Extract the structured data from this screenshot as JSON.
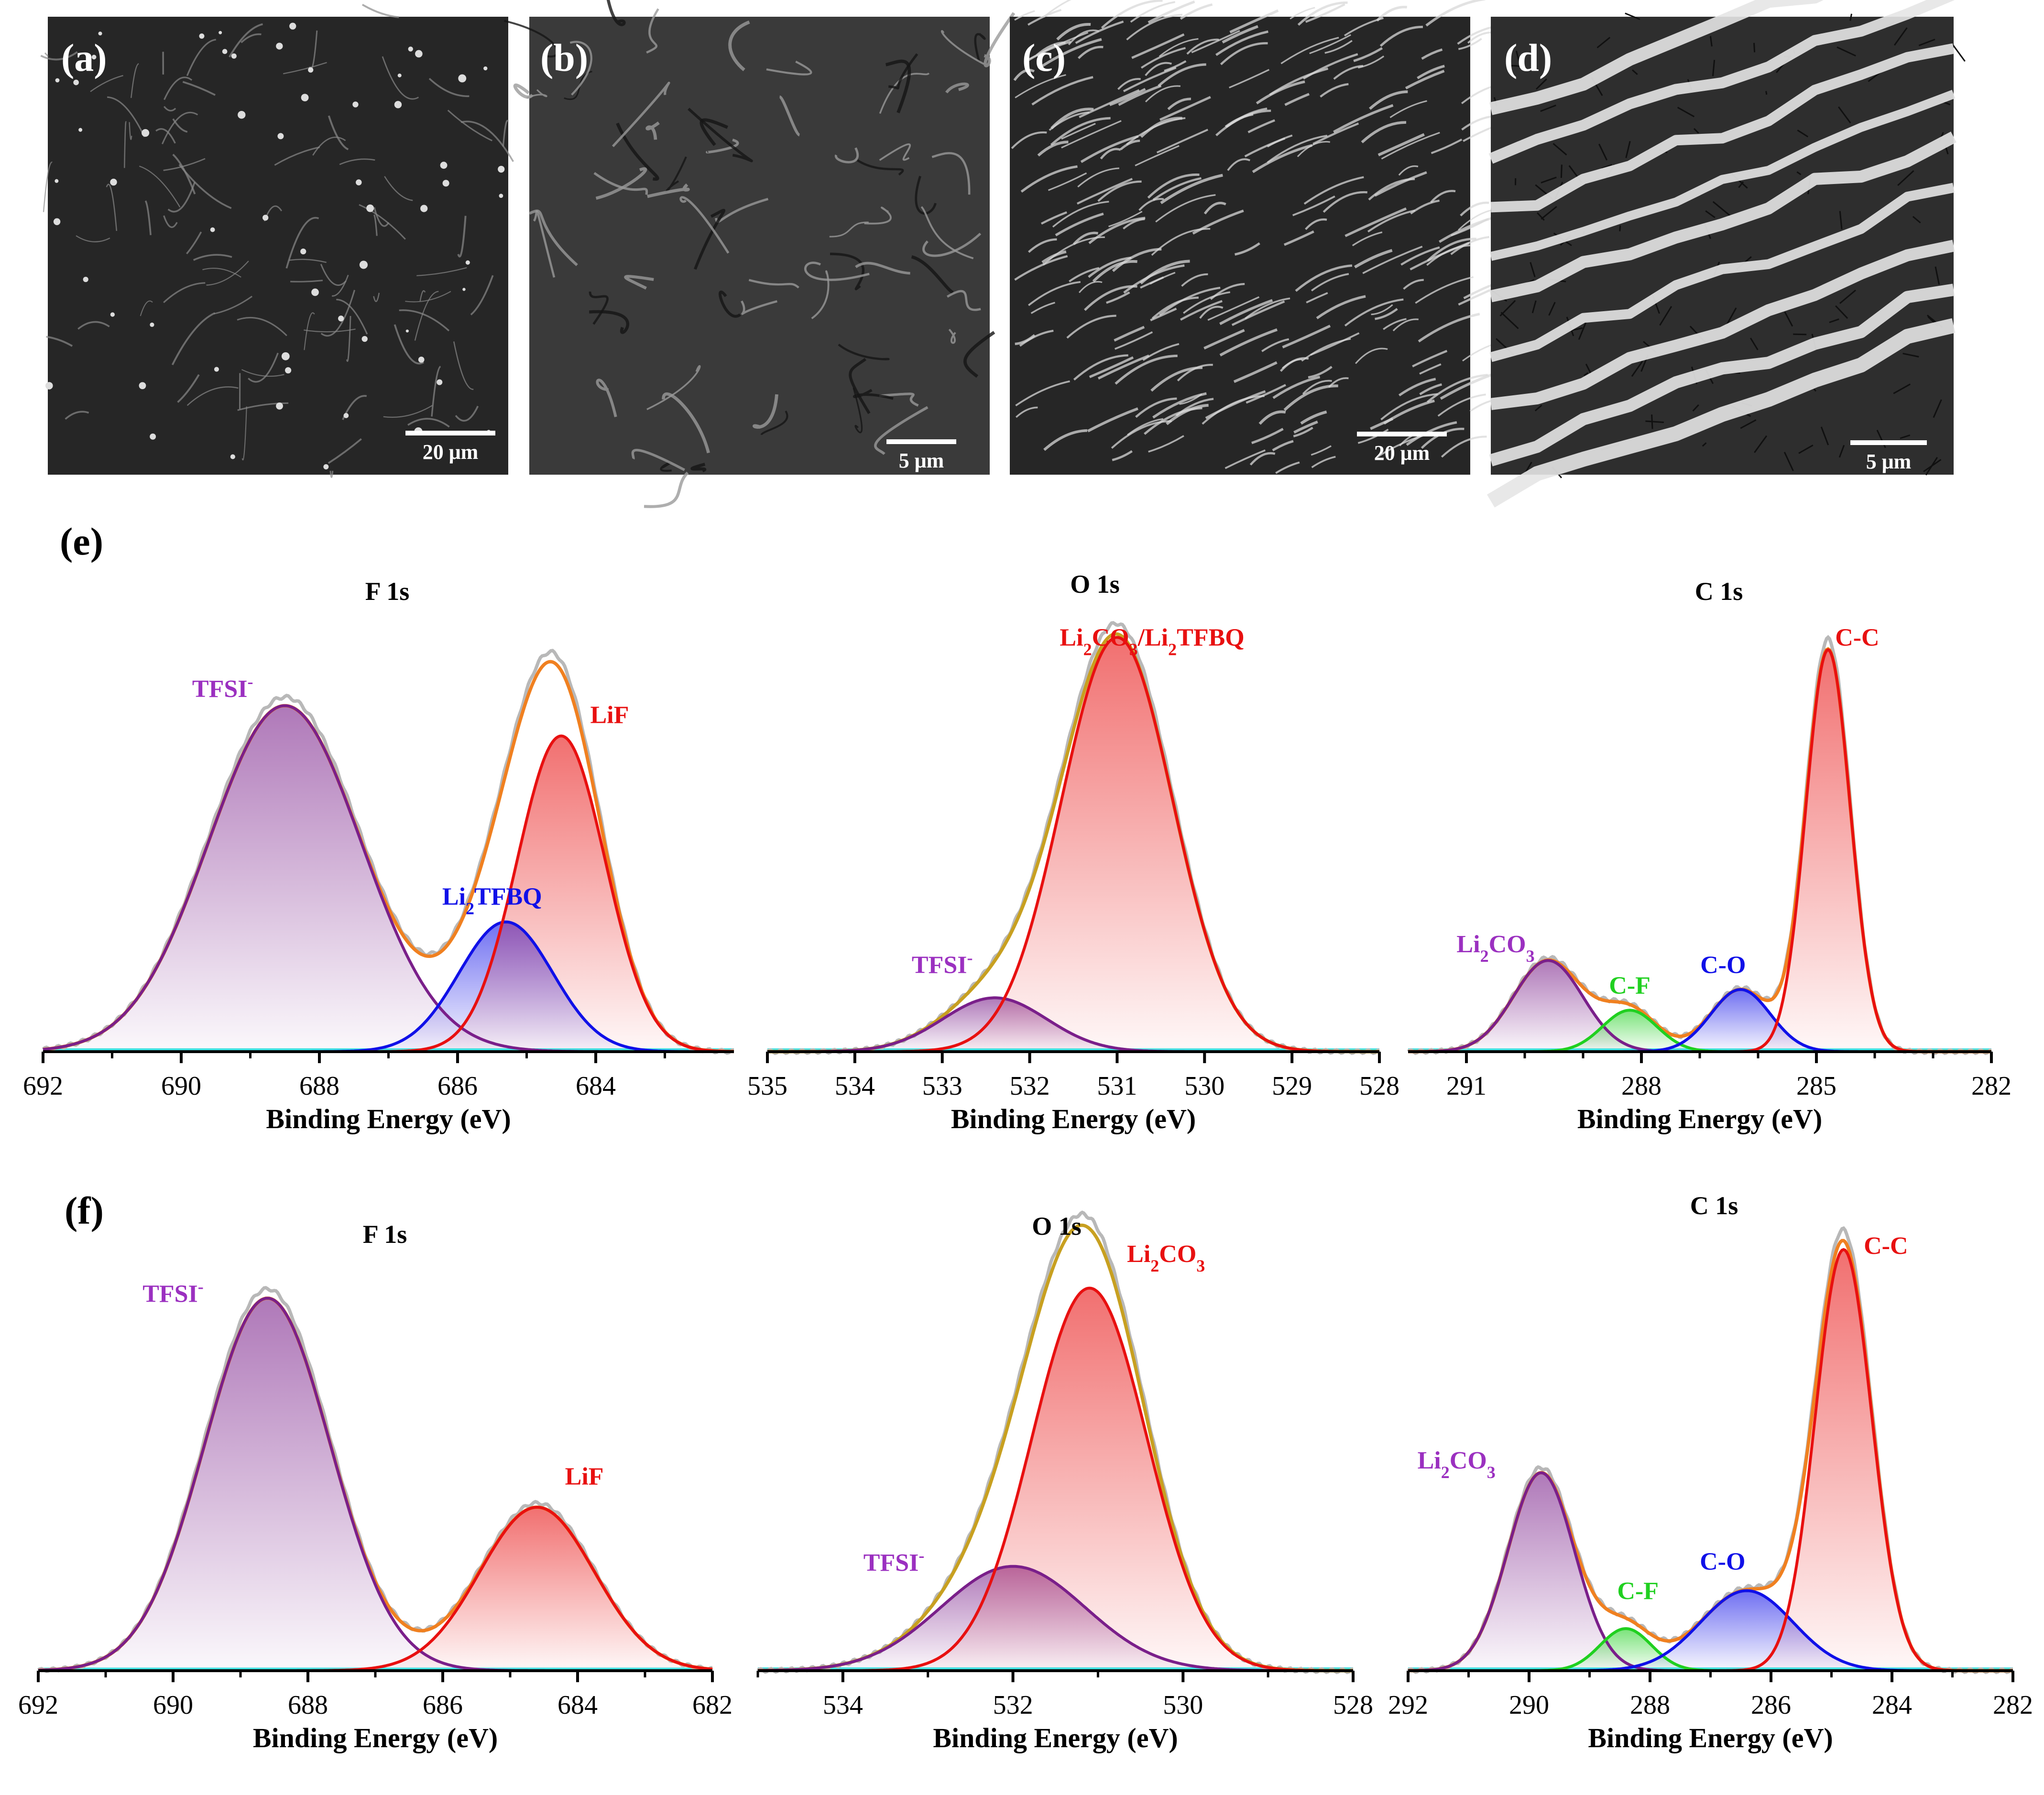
{
  "sem_panels": [
    {
      "letter": "(a)",
      "scale_bar": "20 μm",
      "texture": "fine cracks with bright particles"
    },
    {
      "letter": "(b)",
      "scale_bar": "5 μm",
      "texture": "smooth surface with folds"
    },
    {
      "letter": "(c)",
      "scale_bar": "20 μm",
      "texture": "dense fibrous ridges"
    },
    {
      "letter": "(d)",
      "scale_bar": "5 μm",
      "texture": "coarse bright ridges"
    }
  ],
  "row_labels": {
    "e": "(e)",
    "f": "(f)"
  },
  "colors": {
    "raw": "#b8b8b8",
    "envelope": "#f08020",
    "envelope_o": "#c8a020",
    "purple": "#7a1f8a",
    "purple_label": "#9b30c0",
    "blue": "#1010e8",
    "red": "#e81010",
    "green": "#20d020",
    "baseline": "#40e0e0"
  },
  "chart_data": [
    {
      "id": "e-F1s",
      "type": "line",
      "title": "F 1s",
      "xlabel": "Binding Energy (eV)",
      "ylabel": "",
      "xlim": [
        692,
        682
      ],
      "ylim": [
        0,
        1.05
      ],
      "ticks": [
        692,
        690,
        688,
        686,
        684
      ],
      "minor_ticks": [
        691,
        689,
        687,
        685,
        683
      ],
      "tick_labels": [
        "692",
        "690",
        "688",
        "686",
        "684"
      ],
      "peaks": [
        {
          "name": "TFSI-",
          "label": "TFSI",
          "sup": "-",
          "center": 688.5,
          "fwhm": 2.6,
          "height": 0.8,
          "color": "purple",
          "fill": true
        },
        {
          "name": "Li2TFBQ",
          "label": "Li",
          "sub": "2",
          "label_rest": "TFBQ",
          "center": 685.3,
          "fwhm": 1.6,
          "height": 0.3,
          "color": "blue",
          "fill": true
        },
        {
          "name": "LiF",
          "label": "LiF",
          "center": 684.5,
          "fwhm": 1.5,
          "height": 0.73,
          "color": "red",
          "fill": true
        }
      ],
      "label_positions": [
        [
          689.4,
          0.82
        ],
        [
          685.5,
          0.34
        ],
        [
          683.8,
          0.76
        ]
      ]
    },
    {
      "id": "e-O1s",
      "type": "line",
      "title": "O 1s",
      "xlabel": "Binding Energy (eV)",
      "ylabel": "",
      "xlim": [
        535,
        528
      ],
      "ylim": [
        0,
        1.05
      ],
      "ticks": [
        535,
        534,
        533,
        532,
        531,
        530,
        529,
        528
      ],
      "minor_ticks": [],
      "tick_labels": [
        "535",
        "534",
        "533",
        "532",
        "531",
        "530",
        "529",
        "528"
      ],
      "peaks": [
        {
          "name": "TFSI-",
          "label": "TFSI",
          "sup": "-",
          "center": 532.4,
          "fwhm": 1.4,
          "height": 0.13,
          "color": "purple",
          "fill": true
        },
        {
          "name": "Li2CO3/Li2TFBQ",
          "label": "Li",
          "sub": "2",
          "label_rest": "CO",
          "sub2": "3",
          "label_rest2": "/Li",
          "sub3": "2",
          "label_rest3": "TFBQ",
          "center": 531.0,
          "fwhm": 1.5,
          "height": 1.0,
          "color": "red",
          "fill": true
        }
      ],
      "label_positions": [
        [
          533.0,
          0.19
        ],
        [
          530.6,
          0.98
        ]
      ]
    },
    {
      "id": "e-C1s",
      "type": "line",
      "title": "C 1s",
      "xlabel": "Binding Energy (eV)",
      "ylabel": "",
      "xlim": [
        292,
        282
      ],
      "ylim": [
        0,
        1.05
      ],
      "ticks": [
        291,
        288,
        285,
        282
      ],
      "minor_ticks": [
        290,
        289,
        287,
        286,
        284,
        283
      ],
      "tick_labels": [
        "291",
        "288",
        "285",
        "282"
      ],
      "peaks": [
        {
          "name": "Li2CO3",
          "label": "Li",
          "sub": "2",
          "label_rest": "CO",
          "sub2": "3",
          "center": 289.6,
          "fwhm": 1.4,
          "height": 0.22,
          "color": "purple",
          "fill": true
        },
        {
          "name": "C-F",
          "label": "C-F",
          "center": 288.2,
          "fwhm": 1.1,
          "height": 0.1,
          "color": "green",
          "fill": true
        },
        {
          "name": "C-O",
          "label": "C-O",
          "center": 286.3,
          "fwhm": 1.2,
          "height": 0.15,
          "color": "blue",
          "fill": true
        },
        {
          "name": "C-C",
          "label": "C-C",
          "center": 284.8,
          "fwhm": 0.9,
          "height": 0.97,
          "color": "red",
          "fill": true
        }
      ],
      "label_positions": [
        [
          290.5,
          0.24
        ],
        [
          288.2,
          0.14
        ],
        [
          286.6,
          0.19
        ],
        [
          284.3,
          0.98
        ]
      ]
    },
    {
      "id": "f-F1s",
      "type": "line",
      "title": "F 1s",
      "xlabel": "Binding Energy (eV)",
      "ylabel": "",
      "xlim": [
        692,
        682
      ],
      "ylim": [
        0,
        1.05
      ],
      "ticks": [
        692,
        690,
        688,
        686,
        684,
        682
      ],
      "minor_ticks": [
        691,
        689,
        687,
        685,
        683
      ],
      "tick_labels": [
        "692",
        "690",
        "688",
        "686",
        "684",
        "682"
      ],
      "peaks": [
        {
          "name": "TFSI-",
          "label": "TFSI",
          "sup": "-",
          "center": 688.6,
          "fwhm": 2.2,
          "height": 0.98,
          "color": "purple",
          "fill": true
        },
        {
          "name": "LiF",
          "label": "LiF",
          "center": 684.6,
          "fwhm": 2.0,
          "height": 0.43,
          "color": "red",
          "fill": true
        }
      ],
      "label_positions": [
        [
          690.0,
          0.97
        ],
        [
          683.9,
          0.49
        ]
      ]
    },
    {
      "id": "f-O1s",
      "type": "line",
      "title": "O 1s",
      "xlabel": "Binding Energy (eV)",
      "ylabel": "",
      "xlim": [
        535,
        528
      ],
      "ylim": [
        0,
        1.05
      ],
      "ticks": [
        534,
        532,
        530,
        528
      ],
      "minor_ticks": [
        535,
        533,
        531,
        529
      ],
      "tick_labels": [
        "534",
        "532",
        "530",
        "528"
      ],
      "peaks": [
        {
          "name": "TFSI-",
          "label": "TFSI",
          "sup": "-",
          "center": 532.0,
          "fwhm": 2.0,
          "height": 0.24,
          "color": "purple",
          "fill": true
        },
        {
          "name": "Li2CO3",
          "label": "Li",
          "sub": "2",
          "label_rest": "CO",
          "sub2": "3",
          "center": 531.1,
          "fwhm": 1.6,
          "height": 0.88,
          "color": "red",
          "fill": true
        }
      ],
      "label_positions": [
        [
          533.4,
          0.23
        ],
        [
          530.2,
          0.94
        ]
      ]
    },
    {
      "id": "f-C1s",
      "type": "line",
      "title": "C 1s",
      "xlabel": "Binding Energy (eV)",
      "ylabel": "",
      "xlim": [
        292,
        282
      ],
      "ylim": [
        0,
        1.05
      ],
      "ticks": [
        292,
        290,
        288,
        286,
        284,
        282
      ],
      "minor_ticks": [
        291,
        289,
        287,
        285,
        283
      ],
      "tick_labels": [
        "292",
        "290",
        "288",
        "286",
        "284",
        "282"
      ],
      "peaks": [
        {
          "name": "Li2CO3",
          "label": "Li",
          "sub": "2",
          "label_rest": "CO",
          "sub2": "3",
          "center": 289.8,
          "fwhm": 1.3,
          "height": 0.47,
          "color": "purple",
          "fill": true
        },
        {
          "name": "C-F",
          "label": "C-F",
          "center": 288.4,
          "fwhm": 1.0,
          "height": 0.1,
          "color": "green",
          "fill": true
        },
        {
          "name": "C-O",
          "label": "C-O",
          "center": 286.4,
          "fwhm": 1.8,
          "height": 0.19,
          "color": "blue",
          "fill": true
        },
        {
          "name": "C-C",
          "label": "C-C",
          "center": 284.8,
          "fwhm": 1.1,
          "height": 1.0,
          "color": "red",
          "fill": true
        }
      ],
      "label_positions": [
        [
          291.2,
          0.48
        ],
        [
          288.2,
          0.17
        ],
        [
          286.8,
          0.24
        ],
        [
          284.1,
          0.99
        ]
      ]
    }
  ]
}
